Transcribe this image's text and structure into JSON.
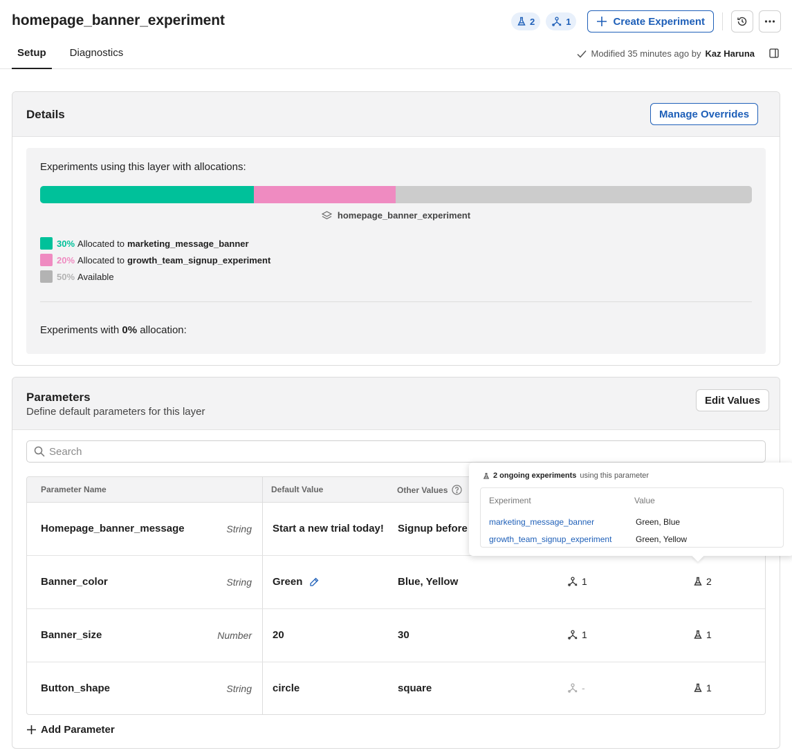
{
  "header": {
    "title": "homepage_banner_experiment",
    "experiments_count": "2",
    "holdouts_count": "1",
    "create_label": "Create Experiment",
    "tabs": [
      {
        "label": "Setup",
        "active": true
      },
      {
        "label": "Diagnostics",
        "active": false
      }
    ],
    "modified_text": "Modified 35 minutes ago by",
    "modified_by": "Kaz Haruna"
  },
  "details": {
    "title": "Details",
    "manage_label": "Manage Overrides",
    "alloc_heading": "Experiments using this layer with allocations:",
    "layer_name": "homepage_banner_experiment",
    "allocations": [
      {
        "percent": "30%",
        "prefix": "Allocated to",
        "name": "marketing_message_banner",
        "value": 0.3,
        "color": "#00c19a"
      },
      {
        "percent": "20%",
        "prefix": "Allocated to",
        "name": "growth_team_signup_experiment",
        "value": 0.2,
        "color": "#ef8bc1"
      },
      {
        "percent": "50%",
        "prefix": "Available",
        "name": "",
        "value": 0.5,
        "color": "#b3b3b3"
      }
    ],
    "zero_prefix": "Experiments with",
    "zero_pct": "0%",
    "zero_suffix": "allocation:"
  },
  "parameters": {
    "title": "Parameters",
    "subtitle": "Define default parameters for this layer",
    "edit_label": "Edit Values",
    "search_placeholder": "Search",
    "columns": {
      "name": "Parameter Name",
      "default": "Default Value",
      "other": "Other Values"
    },
    "rows": [
      {
        "name": "Homepage_banner_message",
        "type": "String",
        "default": "Start a new trial today!",
        "other": "Signup before it",
        "holdouts": "",
        "experiments": ""
      },
      {
        "name": "Banner_color",
        "type": "String",
        "default": "Green",
        "other": "Blue, Yellow",
        "holdouts": "1",
        "experiments": "2"
      },
      {
        "name": "Banner_size",
        "type": "Number",
        "default": "20",
        "other": "30",
        "holdouts": "1",
        "experiments": "1"
      },
      {
        "name": "Button_shape",
        "type": "String",
        "default": "circle",
        "other": "square",
        "holdouts": "-",
        "experiments": "1"
      }
    ],
    "add_label": "Add Parameter"
  },
  "popover": {
    "count_text": "2 ongoing experiments",
    "suffix": "using this parameter",
    "col_experiment": "Experiment",
    "col_value": "Value",
    "rows": [
      {
        "experiment": "marketing_message_banner",
        "value": "Green, Blue"
      },
      {
        "experiment": "growth_team_signup_experiment",
        "value": "Green, Yellow"
      }
    ]
  },
  "colors": {
    "accent": "#1e5fb8",
    "teal": "#00c19a",
    "pink": "#ef8bc1",
    "gray": "#b3b3b3"
  }
}
